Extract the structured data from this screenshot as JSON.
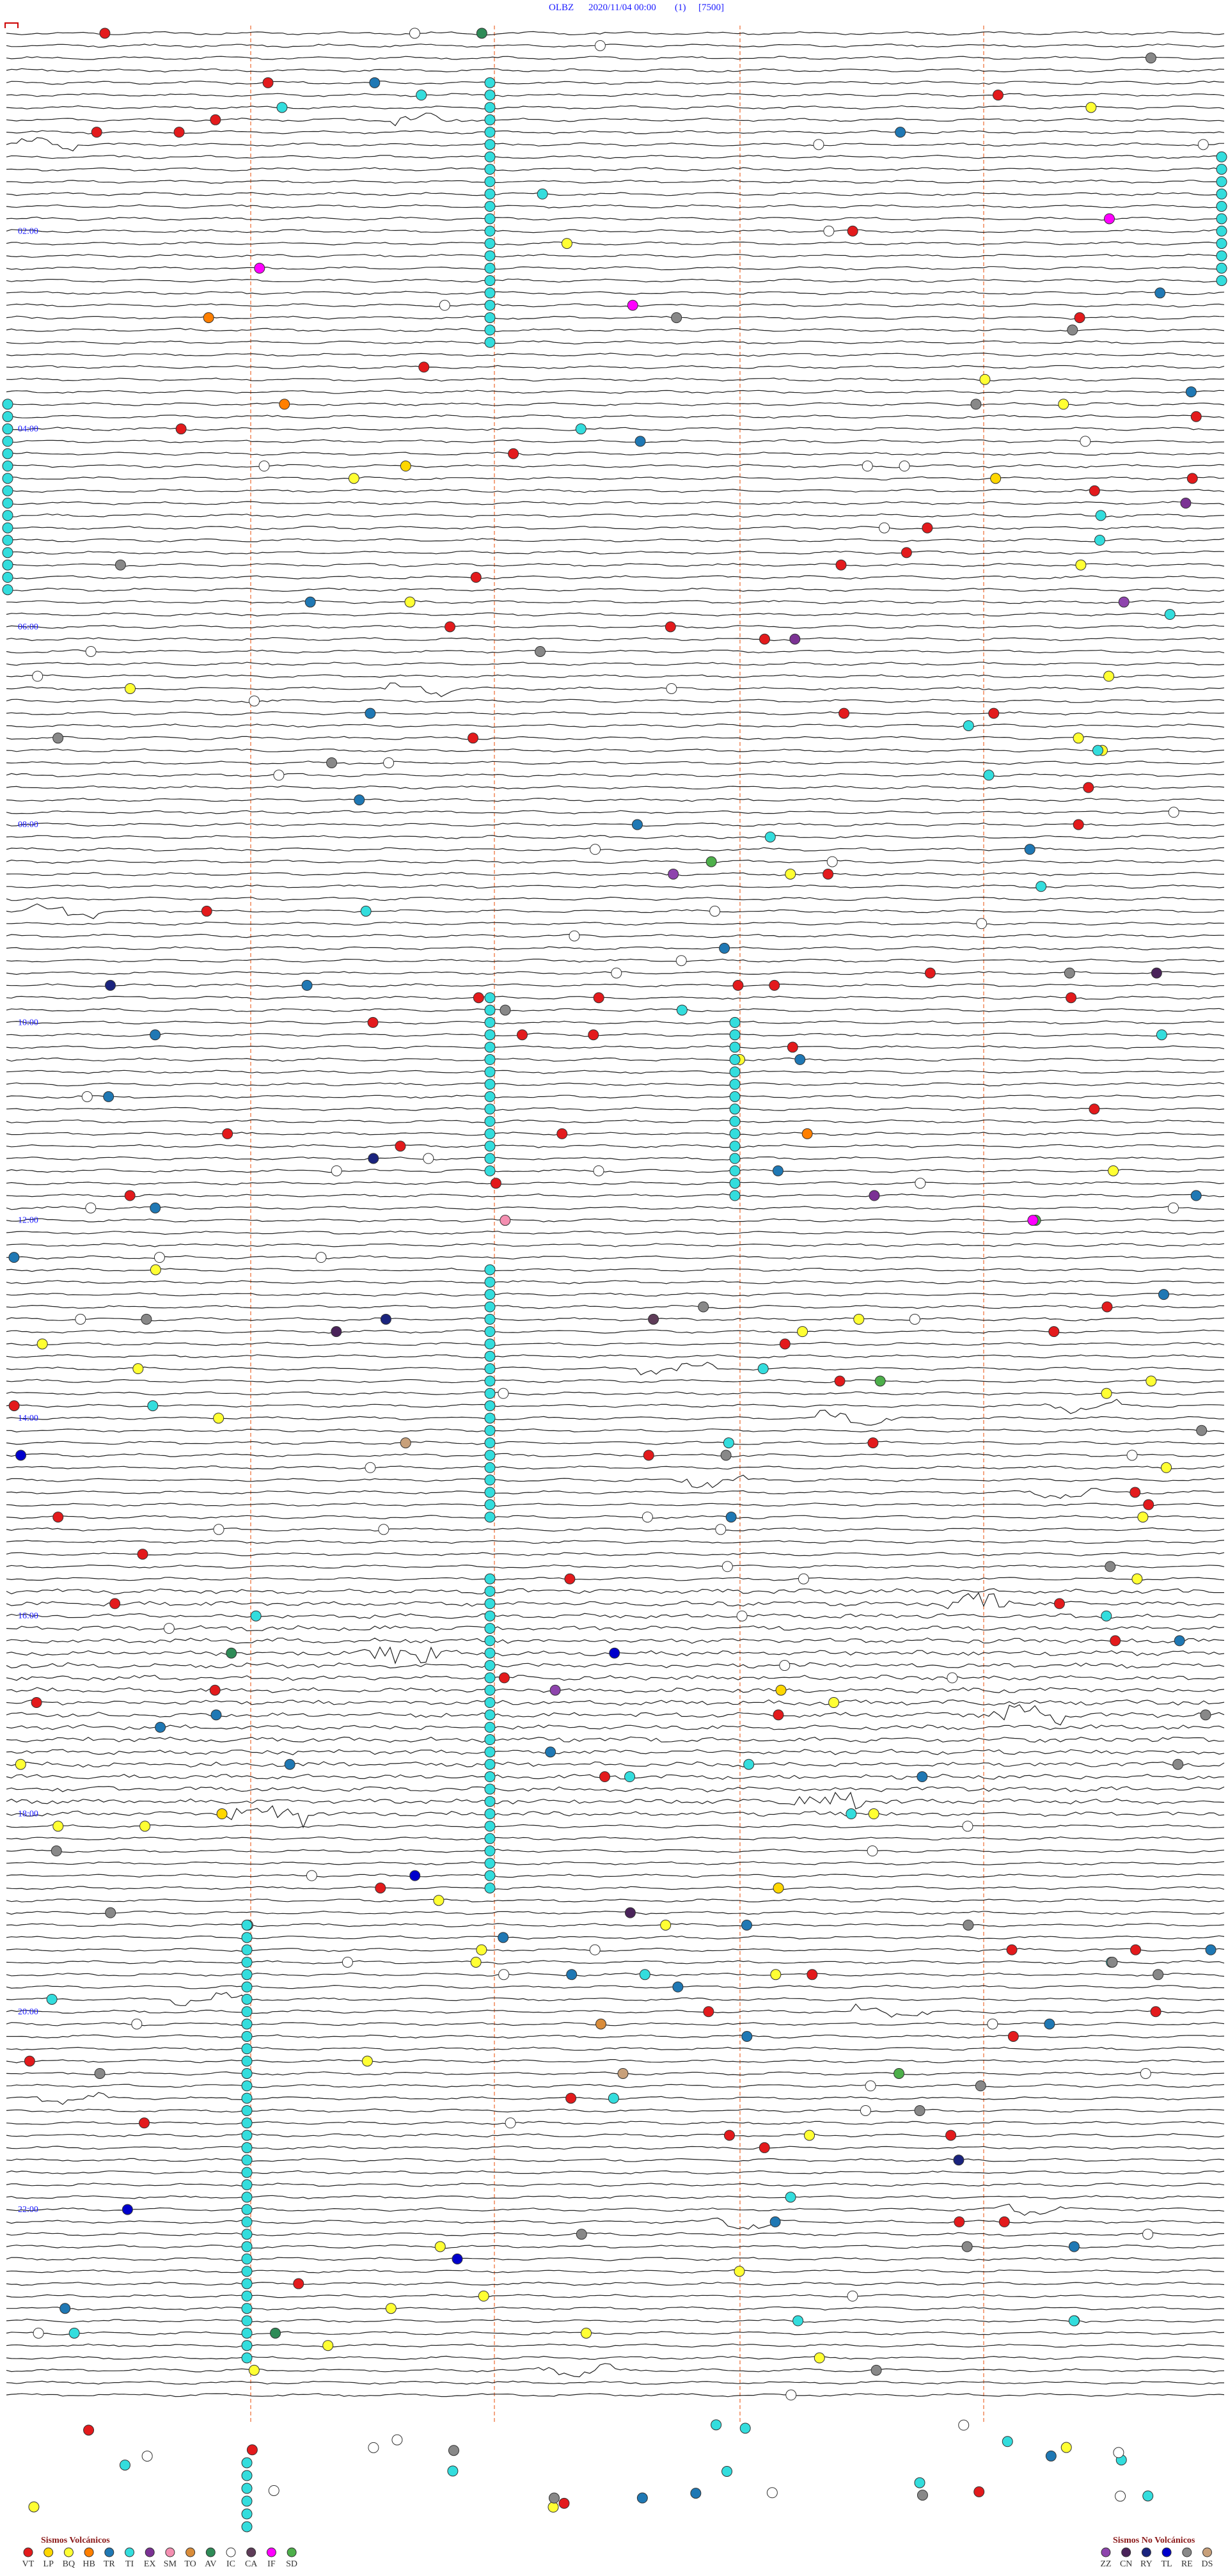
{
  "header": {
    "station": "OLBZ",
    "datetime": "2020/11/04 00:00",
    "channel": "(1)",
    "scale": "[7500]"
  },
  "hour_labels": [
    "02:00",
    "04:00",
    "06:00",
    "08:00",
    "10:00",
    "12:00",
    "14:00",
    "16:00",
    "18:00",
    "20:00",
    "22:00"
  ],
  "legend": {
    "volcanic": {
      "title": "Sismos Volcánicos",
      "items": [
        {
          "code": "VT",
          "color": "#e31a1c"
        },
        {
          "code": "LP",
          "color": "#ffd700"
        },
        {
          "code": "BQ",
          "color": "#ffff33"
        },
        {
          "code": "HB",
          "color": "#ff7f00"
        },
        {
          "code": "TR",
          "color": "#1f78b4"
        },
        {
          "code": "TI",
          "color": "#33dddd"
        },
        {
          "code": "EX",
          "color": "#7b3294"
        },
        {
          "code": "SM",
          "color": "#f48fb1"
        },
        {
          "code": "TO",
          "color": "#d98c3a"
        },
        {
          "code": "AV",
          "color": "#2e8b57"
        },
        {
          "code": "IC",
          "color": "#ffffff"
        },
        {
          "code": "CA",
          "color": "#5e3c58"
        },
        {
          "code": "IF",
          "color": "#ff00ff"
        },
        {
          "code": "SD",
          "color": "#4daf4a"
        }
      ]
    },
    "non_volcanic": {
      "title": "Sismos No Volcánicos",
      "items": [
        {
          "code": "ZZ",
          "color": "#8e44ad"
        },
        {
          "code": "CN",
          "color": "#4a235a"
        },
        {
          "code": "RY",
          "color": "#1a237e"
        },
        {
          "code": "TL",
          "color": "#0000cc"
        },
        {
          "code": "RE",
          "color": "#888888"
        },
        {
          "code": "DS",
          "color": "#c8a07a"
        }
      ]
    }
  }
}
